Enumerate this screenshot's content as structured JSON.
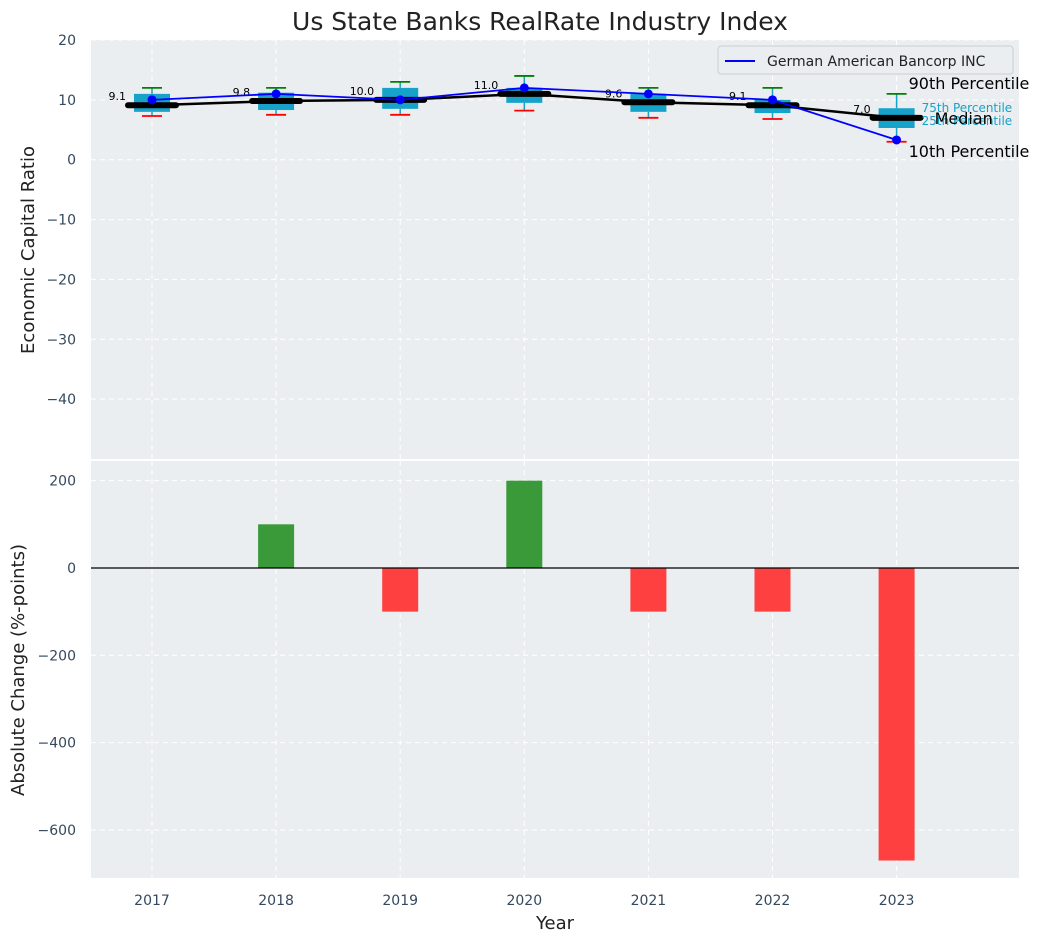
{
  "chart_data": [
    {
      "type": "box",
      "title": "Us State Banks RealRate Industry Index",
      "xlabel": "",
      "ylabel": "Economic Capital Ratio",
      "ylim": [
        -50,
        20
      ],
      "yticks": [
        20,
        10,
        0,
        -10,
        -20,
        -30,
        -40
      ],
      "ytick_labels": [
        "20",
        "10",
        "0",
        "−10",
        "−20",
        "−30",
        "−40"
      ],
      "categories": [
        "2017",
        "2018",
        "2019",
        "2020",
        "2021",
        "2022",
        "2023"
      ],
      "boxes": [
        {
          "p10": 7.3,
          "q1": 8.0,
          "median": 9.1,
          "q3": 11.0,
          "p90": 12.0
        },
        {
          "p10": 7.5,
          "q1": 8.3,
          "median": 9.8,
          "q3": 11.2,
          "p90": 12.0
        },
        {
          "p10": 7.5,
          "q1": 8.5,
          "median": 10.0,
          "q3": 12.0,
          "p90": 13.0
        },
        {
          "p10": 8.2,
          "q1": 9.5,
          "median": 11.0,
          "q3": 12.0,
          "p90": 14.0
        },
        {
          "p10": 7.0,
          "q1": 8.0,
          "median": 9.6,
          "q3": 11.0,
          "p90": 12.0
        },
        {
          "p10": 6.8,
          "q1": 7.8,
          "median": 9.1,
          "q3": 10.0,
          "p90": 12.0
        },
        {
          "p10": 3.0,
          "q1": 5.3,
          "median": 7.0,
          "q3": 8.6,
          "p90": 11.0
        }
      ],
      "median_labels": [
        "9.1",
        "9.8",
        "10.0",
        "11.0",
        "9.6",
        "9.1",
        "7.0"
      ],
      "series": [
        {
          "name": "German American Bancorp INC",
          "color": "#0000ff",
          "values": [
            10.0,
            11.0,
            10.0,
            12.0,
            11.0,
            10.0,
            3.3
          ]
        },
        {
          "name": "Median",
          "color": "#000000",
          "values": [
            9.1,
            9.8,
            10.0,
            11.0,
            9.6,
            9.1,
            7.0
          ]
        }
      ],
      "annotations": {
        "p90": "90th Percentile",
        "p75": "75th Percentile",
        "median": "Median",
        "p25": "25th Percentile",
        "p10": "10th Percentile"
      },
      "legend": {
        "position": "top-right",
        "entries": [
          "German American Bancorp INC"
        ]
      },
      "colors": {
        "box": "#17a2c9",
        "whisker_top": "#008000",
        "whisker_bottom": "#ff0000"
      }
    },
    {
      "type": "bar",
      "xlabel": "Year",
      "ylabel": "Absolute Change (%-points)",
      "ylim": [
        -710,
        245
      ],
      "yticks": [
        200,
        0,
        -200,
        -400,
        -600
      ],
      "ytick_labels": [
        "200",
        "0",
        "−200",
        "−400",
        "−600"
      ],
      "categories": [
        "2017",
        "2018",
        "2019",
        "2020",
        "2021",
        "2022",
        "2023"
      ],
      "values": [
        0,
        100,
        -100,
        200,
        -100,
        -100,
        -670
      ],
      "colors": {
        "positive": "#3a9a3a",
        "negative": "#ff4040"
      }
    }
  ]
}
